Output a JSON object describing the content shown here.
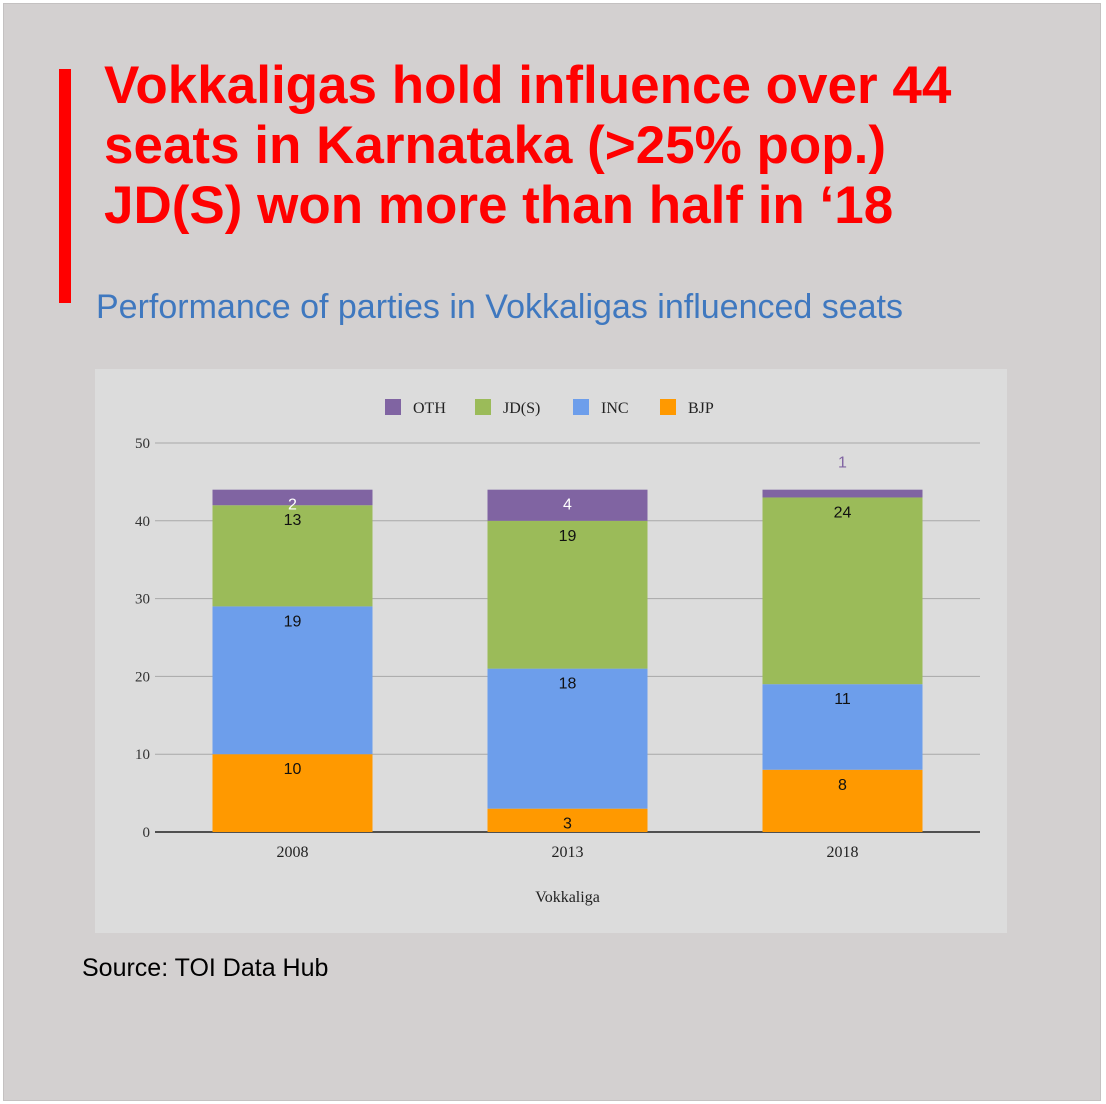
{
  "headline": {
    "line1": "Vokkaligas  hold influence over 44",
    "line2": "seats in Karnataka (>25% pop.)",
    "line3": "JD(S) won more than half in ‘18"
  },
  "subtitle": "Performance of parties in Vokkaligas  influenced seats",
  "source": "Source: TOI Data Hub",
  "colors": {
    "accent": "#ff0000",
    "subtitle": "#3f78bf",
    "OTH": "#8064a2",
    "JD(S)": "#9bbb59",
    "INC": "#6d9eeb",
    "BJP": "#ff9900"
  },
  "chart_data": {
    "type": "bar",
    "stacked": true,
    "categories": [
      "2008",
      "2013",
      "2018"
    ],
    "series": [
      {
        "name": "BJP",
        "values": [
          10,
          3,
          8
        ]
      },
      {
        "name": "INC",
        "values": [
          19,
          18,
          11
        ]
      },
      {
        "name": "JD(S)",
        "values": [
          13,
          19,
          24
        ]
      },
      {
        "name": "OTH",
        "values": [
          2,
          4,
          1
        ]
      }
    ],
    "legend": [
      "OTH",
      "JD(S)",
      "INC",
      "BJP"
    ],
    "legend_position": "top-center",
    "title": "",
    "xlabel": "Vokkaliga",
    "ylabel": "",
    "ylim": [
      0,
      50
    ],
    "yticks": [
      0,
      10,
      20,
      30,
      40,
      50
    ],
    "grid": true
  }
}
